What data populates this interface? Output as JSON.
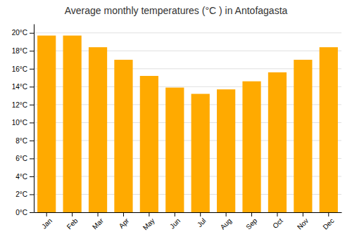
{
  "chart_data": {
    "type": "bar",
    "title": "Average monthly temperatures (°C ) in Antofagasta",
    "categories": [
      "Jan",
      "Feb",
      "Mar",
      "Apr",
      "May",
      "Jun",
      "Jul",
      "Aug",
      "Sep",
      "Oct",
      "Nov",
      "Dec"
    ],
    "values": [
      19.7,
      19.7,
      18.4,
      17.0,
      15.2,
      13.9,
      13.2,
      13.7,
      14.6,
      15.6,
      17.0,
      18.4
    ],
    "color": "#FFAA00",
    "ylim": [
      0,
      21
    ],
    "yticks": [
      {
        "value": 0,
        "label": "0°C"
      },
      {
        "value": 2,
        "label": "2°C"
      },
      {
        "value": 4,
        "label": "4°C"
      },
      {
        "value": 6,
        "label": "6°C"
      },
      {
        "value": 8,
        "label": "8°C"
      },
      {
        "value": 10,
        "label": "10°C"
      },
      {
        "value": 12,
        "label": "12°C"
      },
      {
        "value": 14,
        "label": "14°C"
      },
      {
        "value": 16,
        "label": "16°C"
      },
      {
        "value": 18,
        "label": "18°C"
      },
      {
        "value": 20,
        "label": "20°C"
      }
    ],
    "grid": true
  }
}
